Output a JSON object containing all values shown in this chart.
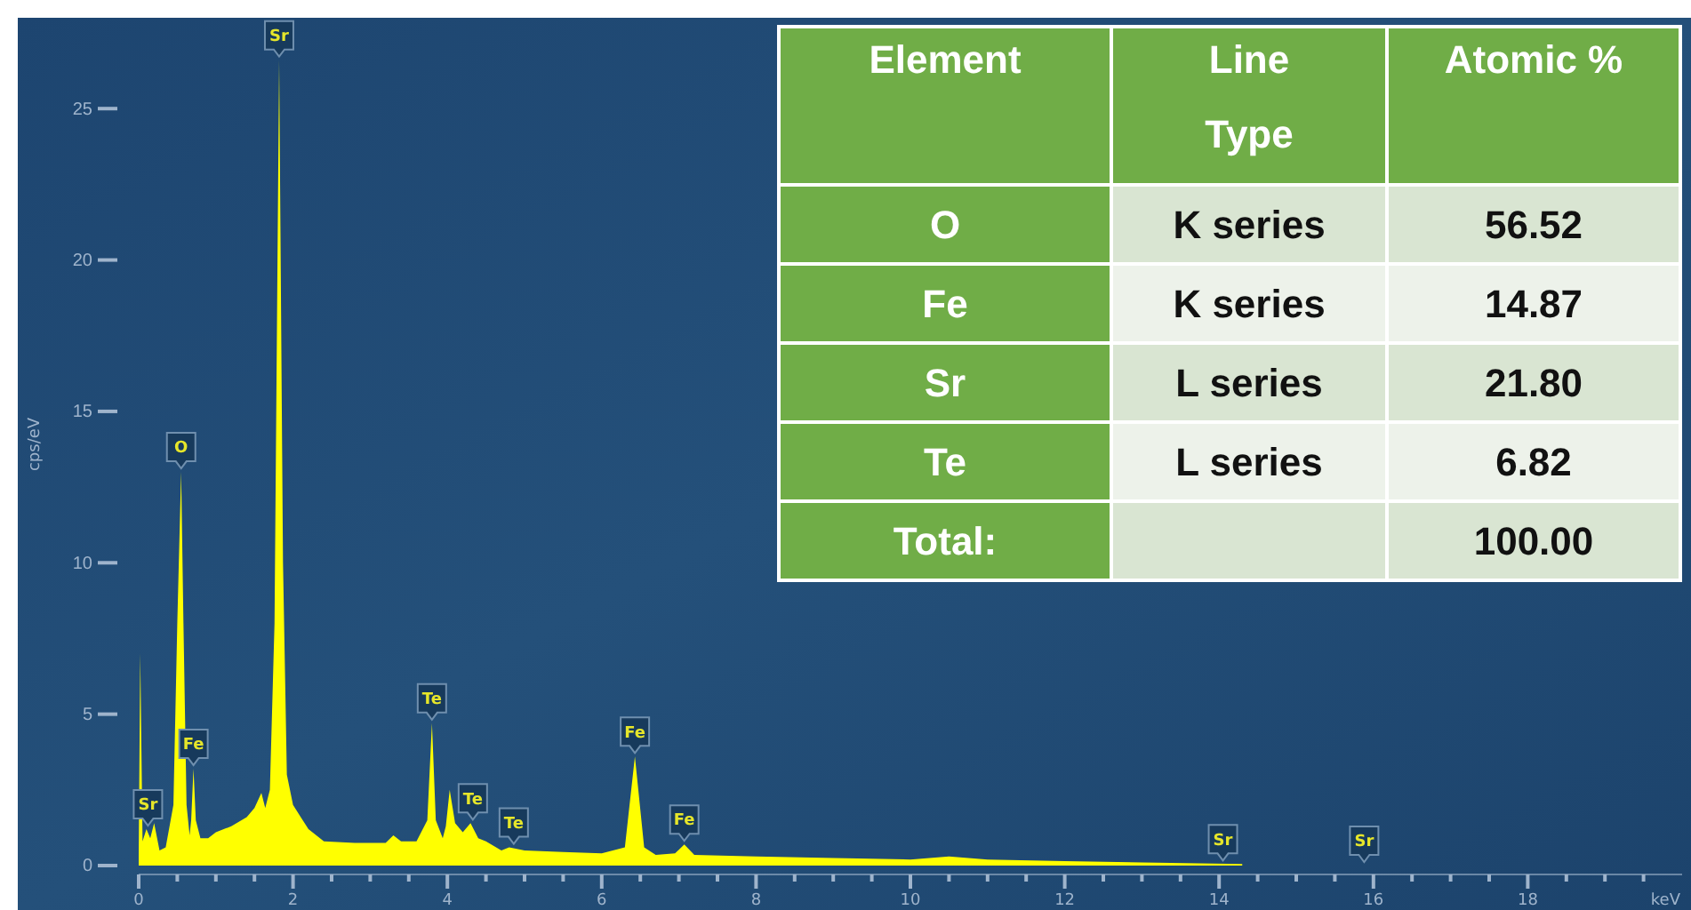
{
  "chart_data": [
    {
      "type": "area",
      "xlabel": "keV",
      "ylabel": "cps/eV",
      "xlim": [
        0,
        20
      ],
      "ylim": [
        0,
        28
      ],
      "xticks": [
        0,
        {
          "value": 0.5,
          "label": null
        },
        {
          "value": 1,
          "label": null
        },
        {
          "value": 1.5,
          "label": null
        },
        2,
        {
          "value": 2.5,
          "label": null
        },
        {
          "value": 3,
          "label": null
        },
        {
          "value": 3.5,
          "label": null
        },
        4,
        {
          "value": 4.5,
          "label": null
        },
        {
          "value": 5,
          "label": null
        },
        {
          "value": 5.5,
          "label": null
        },
        6,
        {
          "value": 6.5,
          "label": null
        },
        {
          "value": 7,
          "label": null
        },
        {
          "value": 7.5,
          "label": null
        },
        8,
        {
          "value": 8.5,
          "label": null
        },
        {
          "value": 9,
          "label": null
        },
        {
          "value": 9.5,
          "label": null
        },
        10,
        {
          "value": 10.5,
          "label": null
        },
        {
          "value": 11,
          "label": null
        },
        {
          "value": 11.5,
          "label": null
        },
        12,
        {
          "value": 12.5,
          "label": null
        },
        {
          "value": 13,
          "label": null
        },
        {
          "value": 13.5,
          "label": null
        },
        14,
        {
          "value": 14.5,
          "label": null
        },
        {
          "value": 15,
          "label": null
        },
        {
          "value": 15.5,
          "label": null
        },
        16,
        {
          "value": 16.5,
          "label": null
        },
        {
          "value": 17,
          "label": null
        },
        {
          "value": 17.5,
          "label": null
        },
        18,
        {
          "value": 18.5,
          "label": null
        },
        {
          "value": 19,
          "label": null
        },
        {
          "value": 19.5,
          "label": null
        }
      ],
      "yticks": [
        0,
        5,
        10,
        15,
        20,
        25
      ],
      "grid": false,
      "series": [
        {
          "color": "#ffff00",
          "x": [
            0,
            0.02,
            0.05,
            0.1,
            0.15,
            0.2,
            0.27,
            0.35,
            0.45,
            0.5,
            0.55,
            0.58,
            0.62,
            0.66,
            0.68,
            0.71,
            0.74,
            0.8,
            0.9,
            1.0,
            1.2,
            1.4,
            1.5,
            1.59,
            1.64,
            1.7,
            1.76,
            1.82,
            1.87,
            1.92,
            2.0,
            2.1,
            2.2,
            2.4,
            2.8,
            3.2,
            3.3,
            3.4,
            3.6,
            3.74,
            3.8,
            3.85,
            3.94,
            3.98,
            4.03,
            4.1,
            4.2,
            4.3,
            4.4,
            4.5,
            4.7,
            4.8,
            5.0,
            5.5,
            6.0,
            6.3,
            6.43,
            6.55,
            6.7,
            6.95,
            7.07,
            7.2,
            8,
            9,
            10,
            10.5,
            11,
            12,
            13,
            14.3
          ],
          "values": [
            0.3,
            7.0,
            0.8,
            1.2,
            0.9,
            1.4,
            0.5,
            0.6,
            2.0,
            8.0,
            13.0,
            8.0,
            2.0,
            1.0,
            1.5,
            3.2,
            1.5,
            0.9,
            0.9,
            1.1,
            1.3,
            1.6,
            1.9,
            2.4,
            1.9,
            2.5,
            8.0,
            26.6,
            10.0,
            3.0,
            2.0,
            1.6,
            1.2,
            0.8,
            0.75,
            0.75,
            1.0,
            0.8,
            0.8,
            1.5,
            4.7,
            1.5,
            0.9,
            1.3,
            2.5,
            1.4,
            1.1,
            1.4,
            0.9,
            0.8,
            0.5,
            0.6,
            0.5,
            0.45,
            0.4,
            0.6,
            3.6,
            0.6,
            0.35,
            0.4,
            0.7,
            0.35,
            0.3,
            0.25,
            0.2,
            0.3,
            0.2,
            0.15,
            0.1,
            0.05
          ]
        }
      ],
      "annotations": [
        {
          "text": "Sr",
          "x": 0.12,
          "y": 1.2
        },
        {
          "text": "Sr",
          "x": 1.82,
          "y": 26.6
        },
        {
          "text": "O",
          "x": 0.55,
          "y": 13.0
        },
        {
          "text": "Fe",
          "x": 0.71,
          "y": 3.2
        },
        {
          "text": "Te",
          "x": 3.8,
          "y": 4.7
        },
        {
          "text": "Te",
          "x": 4.33,
          "y": 1.4
        },
        {
          "text": "Te",
          "x": 4.86,
          "y": 0.6
        },
        {
          "text": "Fe",
          "x": 6.43,
          "y": 3.6
        },
        {
          "text": "Fe",
          "x": 7.07,
          "y": 0.7
        },
        {
          "text": "Sr",
          "x": 14.05,
          "y": 0.05
        },
        {
          "text": "Sr",
          "x": 15.88
        }
      ]
    },
    {
      "type": "other",
      "categories": [
        "Element",
        "Line Type",
        "Atomic %"
      ],
      "y_categories": [
        "O",
        "Fe",
        "Sr",
        "Te",
        "Total:"
      ],
      "cell_labels": [
        [
          "K series",
          "56.52"
        ],
        [
          "K series",
          "14.87"
        ],
        [
          "L series",
          "21.80"
        ],
        [
          "L series",
          "6.82"
        ],
        [
          null,
          "100.00"
        ]
      ]
    }
  ]
}
